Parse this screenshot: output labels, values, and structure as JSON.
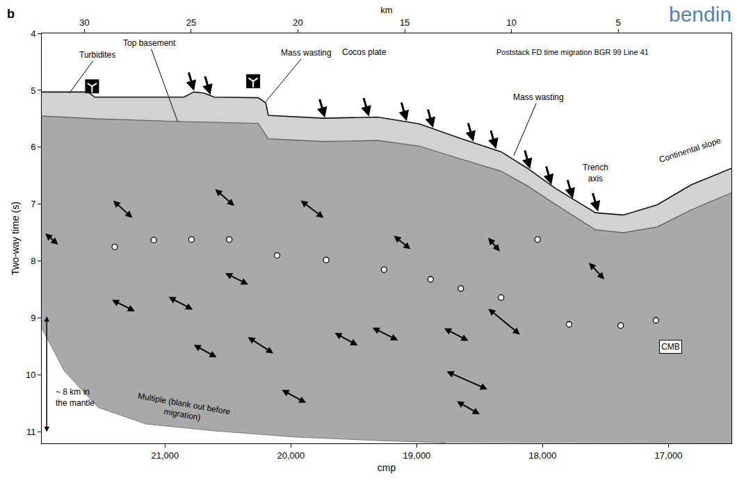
{
  "chart_data": {
    "type": "seismic_section",
    "panel_label": "b",
    "x_label": "cmp",
    "x2_label": "km",
    "y_label": "Two-way time (s)",
    "xlim": [
      21980,
      16500
    ],
    "xticks": [
      {
        "value": 21000,
        "label": "21,000"
      },
      {
        "value": 20000,
        "label": "20,000"
      },
      {
        "value": 19000,
        "label": "19,000"
      },
      {
        "value": 18000,
        "label": "18,000"
      },
      {
        "value": 17000,
        "label": "17,000"
      }
    ],
    "x2lim": [
      32,
      -0.3
    ],
    "x2ticks": [
      30,
      25,
      20,
      15,
      10,
      5
    ],
    "ylim": [
      11.2,
      4
    ],
    "yticks": [
      4,
      5,
      6,
      7,
      8,
      9,
      10,
      11
    ],
    "grid": false,
    "seafloor": {
      "x": [
        21980,
        21610,
        21560,
        20850,
        20770,
        20690,
        20610,
        20260,
        20200,
        20180,
        19740,
        19310,
        18980,
        18660,
        18330,
        18120,
        17900,
        17580,
        17360,
        17090,
        16820,
        16500
      ],
      "y": [
        5.03,
        5.03,
        5.12,
        5.12,
        5.03,
        5.05,
        5.12,
        5.13,
        5.22,
        5.44,
        5.49,
        5.47,
        5.59,
        5.84,
        6.08,
        6.37,
        6.72,
        7.15,
        7.19,
        7.01,
        6.66,
        6.37
      ]
    },
    "top_basement": {
      "x": [
        21980,
        21560,
        20850,
        20260,
        20180,
        19740,
        19310,
        18980,
        18660,
        18330,
        18120,
        17900,
        17580,
        17360,
        17090,
        16820,
        16500
      ],
      "y": [
        5.45,
        5.5,
        5.55,
        5.58,
        5.85,
        5.9,
        5.88,
        5.98,
        6.2,
        6.42,
        6.68,
        7.0,
        7.45,
        7.5,
        7.4,
        7.1,
        6.8
      ]
    },
    "multiple": {
      "x": [
        21980,
        21800,
        21530,
        21150,
        20610,
        19960,
        19310,
        18770
      ],
      "y": [
        9.17,
        9.93,
        10.57,
        10.86,
        10.98,
        11.09,
        11.15,
        11.19
      ]
    },
    "cmb_points": {
      "x": [
        21400,
        21090,
        20790,
        20490,
        20110,
        19720,
        19260,
        18890,
        18650,
        18330,
        18040,
        17790,
        17380,
        17100
      ],
      "y": [
        7.75,
        7.63,
        7.62,
        7.62,
        7.9,
        7.98,
        8.15,
        8.32,
        8.48,
        8.64,
        7.62,
        9.11,
        9.13,
        9.04
      ]
    },
    "fault_markers": {
      "x": [
        20770,
        20640,
        19730,
        19380,
        19080,
        18870,
        18550,
        18370,
        18100,
        17930,
        17760,
        17560
      ],
      "y": [
        5.01,
        5.08,
        5.48,
        5.46,
        5.54,
        5.66,
        5.9,
        6.03,
        6.38,
        6.66,
        6.9,
        7.13
      ]
    },
    "boxed_fault_markers": {
      "x": [
        21580,
        20300
      ],
      "y": [
        4.93,
        4.84
      ]
    },
    "reflector_arrows": [
      [
        21420,
        6.92,
        21260,
        7.24
      ],
      [
        20610,
        6.72,
        20450,
        7.03
      ],
      [
        19930,
        6.92,
        19740,
        7.24
      ],
      [
        19190,
        7.54,
        19050,
        7.79
      ],
      [
        18440,
        7.57,
        18340,
        7.83
      ],
      [
        20530,
        8.2,
        20340,
        8.41
      ],
      [
        21430,
        8.67,
        21240,
        8.88
      ],
      [
        20980,
        8.62,
        20780,
        8.85
      ],
      [
        20780,
        9.46,
        20590,
        9.69
      ],
      [
        20350,
        9.32,
        20140,
        9.62
      ],
      [
        19660,
        9.25,
        19470,
        9.48
      ],
      [
        19360,
        9.16,
        19150,
        9.39
      ],
      [
        18790,
        9.17,
        18590,
        9.4
      ],
      [
        18440,
        8.82,
        18180,
        9.29
      ],
      [
        20080,
        10.25,
        19880,
        10.49
      ],
      [
        18690,
        10.45,
        18500,
        10.69
      ],
      [
        18770,
        9.93,
        18440,
        10.25
      ],
      [
        17640,
        8.01,
        17510,
        8.32
      ],
      [
        21960,
        7.5,
        21850,
        7.71
      ]
    ],
    "mantle_arrow": [
      21940,
      8.95,
      21940,
      11.0
    ],
    "annotations": [
      {
        "text": "Turbidites",
        "x": 21760,
        "y": 5.05
      },
      {
        "text": "Top basement",
        "x": 20900,
        "y": 5.55
      },
      {
        "text": "Mass wasting",
        "x": 20200,
        "y": 5.2
      },
      {
        "text": "Cocos plate",
        "x": 19417,
        "y": 4.33
      },
      {
        "text": "Mass wasting",
        "x": 18230,
        "y": 6.15
      },
      {
        "text": "Poststack FD time migration BGR 99 Line 41",
        "x": 17764,
        "y": 4.33
      },
      {
        "text": [
          "Trench",
          "axis"
        ],
        "x": 17580,
        "y": 6.45
      },
      {
        "text": "Continental slope",
        "x": 16830,
        "y": 6.05
      },
      {
        "text": "CMB",
        "x": 16984,
        "y": 9.5
      },
      {
        "text": [
          "Multiple (blank out before",
          "migration)"
        ],
        "x": 20854,
        "y": 10.6
      },
      {
        "text": [
          "~ 8 km in",
          "the mantle"
        ],
        "x": 21880,
        "y": 10.4
      }
    ],
    "overlay_text": {
      "text": "bendin",
      "color": "#4f81bd"
    }
  }
}
